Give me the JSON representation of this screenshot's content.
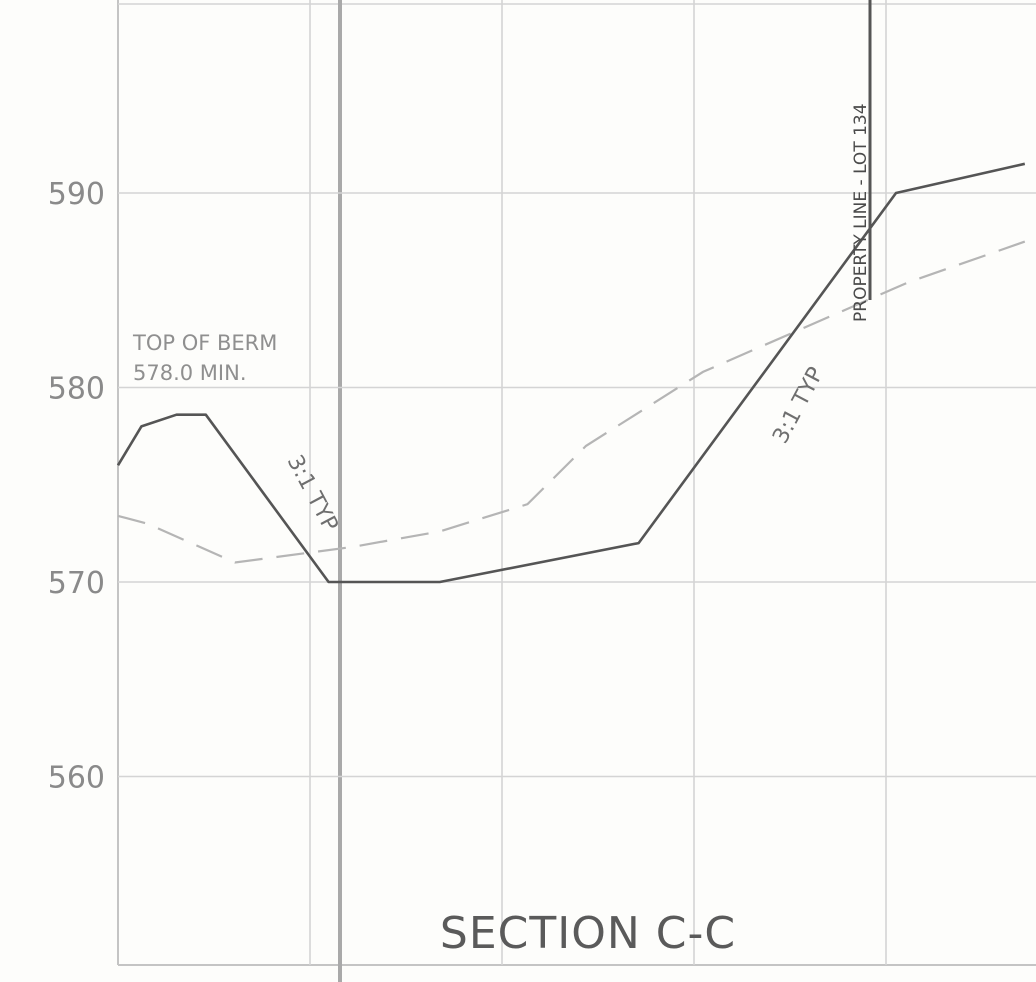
{
  "chart_data": {
    "type": "line",
    "title": "SECTION C-C",
    "y_ticks": [
      590,
      580,
      570,
      560
    ],
    "ylim": [
      550,
      600
    ],
    "grid": true,
    "series": [
      {
        "style": "solid",
        "points": [
          [
            0,
            576.0
          ],
          [
            4,
            578.0
          ],
          [
            10,
            578.6
          ],
          [
            15,
            578.6
          ],
          [
            36,
            570.0
          ],
          [
            55,
            570.0
          ],
          [
            89,
            572.0
          ],
          [
            133,
            590.0
          ],
          [
            155,
            591.5
          ]
        ]
      },
      {
        "style": "dashed",
        "points": [
          [
            0,
            573.4
          ],
          [
            5,
            573.0
          ],
          [
            20,
            571.0
          ],
          [
            40,
            571.8
          ],
          [
            55,
            572.6
          ],
          [
            70,
            574.0
          ],
          [
            80,
            577.0
          ],
          [
            100,
            580.8
          ],
          [
            135,
            585.4
          ],
          [
            155,
            587.5
          ]
        ]
      }
    ],
    "annotations": {
      "berm_line1": "TOP OF BERM",
      "berm_line2": "578.0 MIN.",
      "slope_left": "3:1 TYP",
      "slope_right": "3:1 TYP",
      "property_line": "PROPERTY LINE - LOT 134"
    }
  }
}
